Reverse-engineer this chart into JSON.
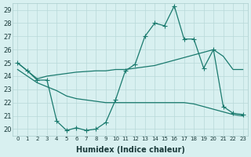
{
  "xlabel": "Humidex (Indice chaleur)",
  "x_values": [
    0,
    1,
    2,
    3,
    4,
    5,
    6,
    7,
    8,
    9,
    10,
    11,
    12,
    13,
    14,
    15,
    16,
    17,
    18,
    19,
    20,
    21,
    22,
    23
  ],
  "line_main": [
    25.0,
    24.4,
    23.7,
    23.7,
    20.6,
    19.9,
    20.1,
    19.9,
    20.0,
    20.5,
    22.2,
    24.4,
    24.9,
    27.0,
    28.0,
    27.8,
    29.3,
    26.8,
    26.8,
    24.6,
    26.0,
    21.7,
    21.2,
    21.1
  ],
  "line_upper_diag": [
    25.0,
    24.4,
    23.8,
    24.0,
    24.1,
    24.2,
    24.3,
    24.35,
    24.4,
    24.4,
    24.5,
    24.5,
    24.6,
    24.7,
    24.8,
    25.0,
    25.2,
    25.4,
    25.6,
    25.8,
    26.0,
    25.5,
    24.5,
    24.5
  ],
  "line_lower_diag": [
    24.5,
    24.0,
    23.5,
    23.2,
    22.9,
    22.5,
    22.3,
    22.2,
    22.1,
    22.0,
    22.0,
    22.0,
    22.0,
    22.0,
    22.0,
    22.0,
    22.0,
    22.0,
    21.9,
    21.7,
    21.5,
    21.3,
    21.1,
    21.0
  ],
  "ylim": [
    19.5,
    29.5
  ],
  "yticks": [
    20,
    21,
    22,
    23,
    24,
    25,
    26,
    27,
    28,
    29
  ],
  "xticks": [
    0,
    1,
    2,
    3,
    4,
    5,
    6,
    7,
    8,
    9,
    10,
    11,
    12,
    13,
    14,
    15,
    16,
    17,
    18,
    19,
    20,
    21,
    22,
    23
  ],
  "line_color": "#1a7a6e",
  "bg_color": "#d8f0f0",
  "grid_color": "#b8d8d8",
  "markersize": 2.0,
  "linewidth": 0.9
}
